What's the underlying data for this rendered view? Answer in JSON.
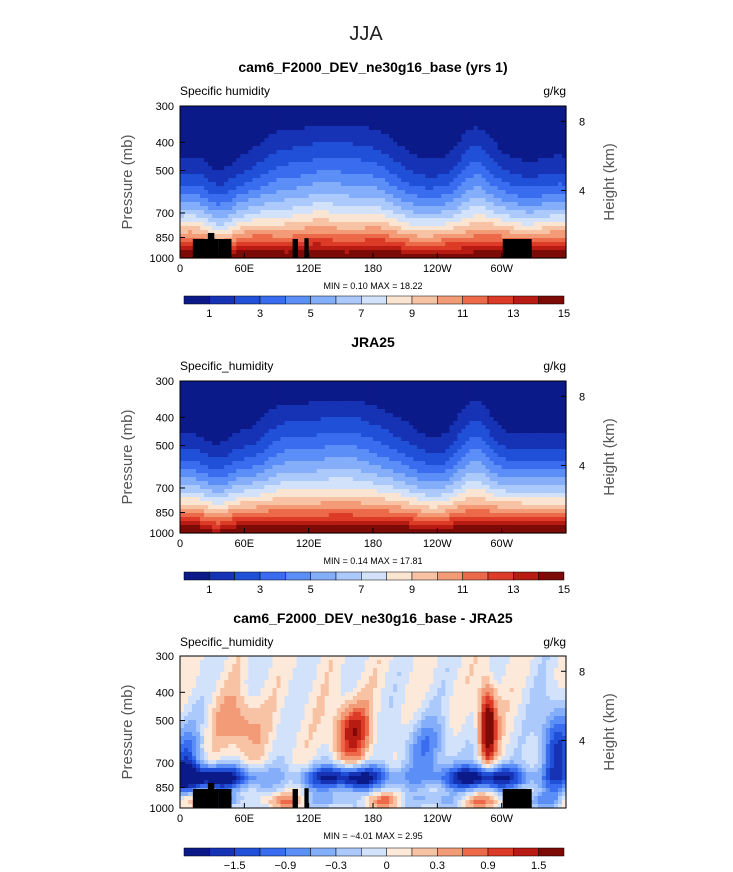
{
  "figure_title": "JJA",
  "colors": {
    "absolute_palette": [
      "#0b1a88",
      "#1632b5",
      "#2050d8",
      "#3a6cf0",
      "#5c8ef7",
      "#84aef9",
      "#acc9fb",
      "#d2e2fb",
      "#fae4d2",
      "#f8c3a4",
      "#f39a76",
      "#ec6a4a",
      "#dc3b27",
      "#b71b12",
      "#7c0a06"
    ],
    "difference_palette": [
      "#0b1a88",
      "#1632b5",
      "#2050d8",
      "#3a6cf0",
      "#5c8ef7",
      "#84aef9",
      "#acc9fb",
      "#d2e2fb",
      "#fde9d9",
      "#f8c3a4",
      "#f39a76",
      "#ec6a4a",
      "#dc3b27",
      "#b71b12",
      "#7c0a06"
    ],
    "topography": "#000000"
  },
  "chart_data": [
    {
      "type": "heatmap",
      "title": "cam6_F2000_DEV_ne30g16_base (yrs 1)",
      "left_label": "Specific humidity",
      "units": "g/kg",
      "ylabel": "Pressure (mb)",
      "y2label": "Height (km)",
      "yticks": [
        "300",
        "400",
        "500",
        "700",
        "850",
        "1000"
      ],
      "y2ticks": [
        "8",
        "4"
      ],
      "xticks": [
        "0",
        "60E",
        "120E",
        "180",
        "120W",
        "60W"
      ],
      "xlim": [
        0,
        360
      ],
      "ylim": [
        1000,
        300
      ],
      "stats": "MIN =    0.10   MAX =   18.22",
      "min": 0.1,
      "max": 18.22,
      "field": "absolute",
      "levels": [
        0,
        2,
        4,
        6,
        8,
        10,
        12,
        14,
        16
      ],
      "colorbar_labels": [
        "1",
        "3",
        "5",
        "7",
        "9",
        "11",
        "13",
        "15"
      ],
      "topography": true
    },
    {
      "type": "heatmap",
      "title": "JRA25",
      "left_label": "Specific_humidity",
      "units": "g/kg",
      "ylabel": "Pressure (mb)",
      "y2label": "Height (km)",
      "yticks": [
        "300",
        "400",
        "500",
        "700",
        "850",
        "1000"
      ],
      "y2ticks": [
        "8",
        "4"
      ],
      "xticks": [
        "0",
        "60E",
        "120E",
        "180",
        "120W",
        "60W"
      ],
      "xlim": [
        0,
        360
      ],
      "ylim": [
        1000,
        300
      ],
      "stats": "MIN =    0.14   MAX =   17.81",
      "min": 0.14,
      "max": 17.81,
      "field": "absolute",
      "levels": [
        0,
        2,
        4,
        6,
        8,
        10,
        12,
        14,
        16
      ],
      "colorbar_labels": [
        "1",
        "3",
        "5",
        "7",
        "9",
        "11",
        "13",
        "15"
      ],
      "topography": false
    },
    {
      "type": "heatmap",
      "title": "cam6_F2000_DEV_ne30g16_base - JRA25",
      "left_label": "Specific_humidity",
      "units": "g/kg",
      "ylabel": "Pressure (mb)",
      "y2label": "Height (km)",
      "yticks": [
        "300",
        "400",
        "500",
        "700",
        "850",
        "1000"
      ],
      "y2ticks": [
        "8",
        "4"
      ],
      "xticks": [
        "0",
        "60E",
        "120E",
        "180",
        "120W",
        "60W"
      ],
      "xlim": [
        0,
        360
      ],
      "ylim": [
        1000,
        300
      ],
      "stats": "MIN =   −4.01   MAX =    2.95",
      "min": -4.01,
      "max": 2.95,
      "field": "difference",
      "levels": [
        -1.5,
        -0.9,
        -0.3,
        0,
        0.3,
        0.9,
        1.5
      ],
      "colorbar_labels": [
        "−1.5",
        "−0.9",
        "−0.3",
        "0",
        "0.3",
        "0.9",
        "1.5"
      ],
      "topography": true
    }
  ]
}
